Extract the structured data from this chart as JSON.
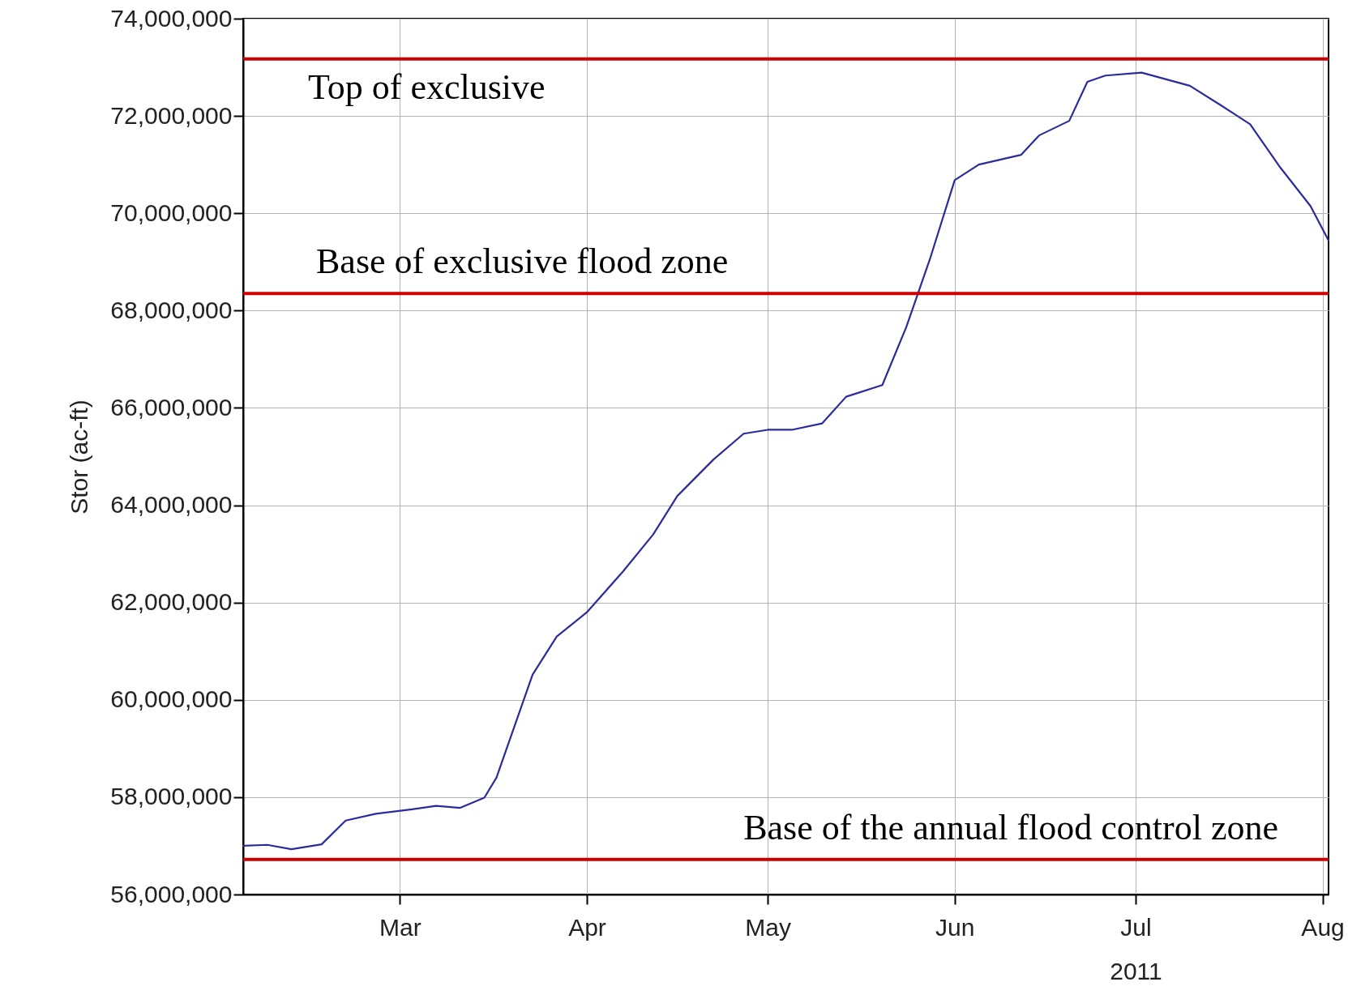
{
  "chart_data": {
    "type": "line",
    "ylabel": "Stor (ac-ft)",
    "x": [
      "2011-02-03",
      "2011-02-07",
      "2011-02-11",
      "2011-02-16",
      "2011-02-20",
      "2011-02-25",
      "2011-03-03",
      "2011-03-07",
      "2011-03-11",
      "2011-03-15",
      "2011-03-17",
      "2011-03-23",
      "2011-03-27",
      "2011-04-01",
      "2011-04-07",
      "2011-04-12",
      "2011-04-16",
      "2011-04-22",
      "2011-04-27",
      "2011-05-01",
      "2011-05-05",
      "2011-05-10",
      "2011-05-14",
      "2011-05-20",
      "2011-05-24",
      "2011-05-28",
      "2011-06-01",
      "2011-06-05",
      "2011-06-12",
      "2011-06-15",
      "2011-06-20",
      "2011-06-23",
      "2011-06-26",
      "2011-07-02",
      "2011-07-10",
      "2011-07-15",
      "2011-07-20",
      "2011-07-25",
      "2011-07-30",
      "2011-08-02"
    ],
    "series": [
      {
        "color": "#2b2b9c",
        "values": [
          57000000,
          57020000,
          56930000,
          57030000,
          57520000,
          57660000,
          57750000,
          57820000,
          57780000,
          57990000,
          58400000,
          60520000,
          61300000,
          61800000,
          62640000,
          63400000,
          64190000,
          64940000,
          65470000,
          65550000,
          65550000,
          65680000,
          66230000,
          66470000,
          67670000,
          69100000,
          70680000,
          71000000,
          71200000,
          71600000,
          71900000,
          72700000,
          72830000,
          72890000,
          72620000,
          72230000,
          71830000,
          70940000,
          70150000,
          69440000
        ]
      }
    ],
    "xlim": [
      "2011-02-03",
      "2011-08-02"
    ],
    "xticks": [
      {
        "value": "2011-03-01",
        "label": "Mar"
      },
      {
        "value": "2011-04-01",
        "label": "Apr"
      },
      {
        "value": "2011-05-01",
        "label": "May"
      },
      {
        "value": "2011-06-01",
        "label": "Jun"
      },
      {
        "value": "2011-07-01",
        "label": "Jul\n2011"
      },
      {
        "value": "2011-08-01",
        "label": "Aug"
      }
    ],
    "ylim": [
      56000000,
      74000000
    ],
    "yticks": [
      {
        "value": 56000000,
        "label": "56,000,000"
      },
      {
        "value": 58000000,
        "label": "58,000,000"
      },
      {
        "value": 60000000,
        "label": "60,000,000"
      },
      {
        "value": 62000000,
        "label": "62,000,000"
      },
      {
        "value": 64000000,
        "label": "64,000,000"
      },
      {
        "value": 66000000,
        "label": "66,000,000"
      },
      {
        "value": 68000000,
        "label": "68,000,000"
      },
      {
        "value": 70000000,
        "label": "70,000,000"
      },
      {
        "value": 72000000,
        "label": "72,000,000"
      },
      {
        "value": 74000000,
        "label": "74,000,000"
      }
    ],
    "ref_lines": [
      {
        "axis": "y",
        "value": 73170000,
        "label": "Top of exclusive",
        "color": "#cc0000"
      },
      {
        "axis": "y",
        "value": 68350000,
        "label": "Base of exclusive flood zone",
        "color": "#cc0000"
      },
      {
        "axis": "y",
        "value": 56720000,
        "label": "Base of the annual flood control zone",
        "color": "#cc0000"
      }
    ],
    "grid": true,
    "line_style": "solid",
    "marker": "none"
  }
}
